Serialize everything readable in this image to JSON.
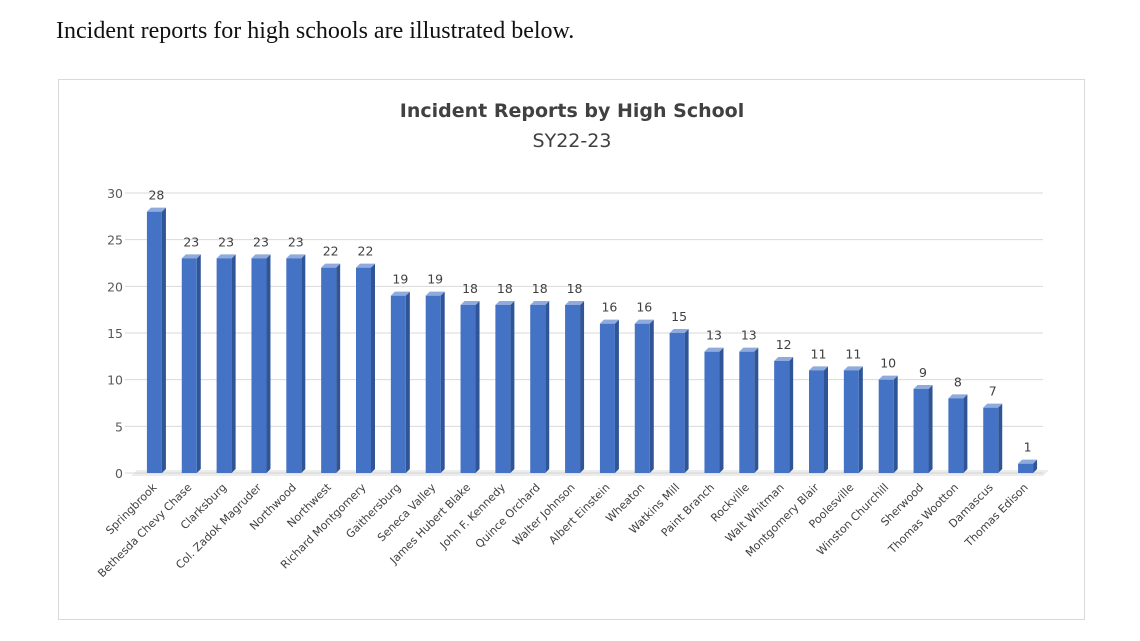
{
  "intro_text": "Incident reports for high schools are illustrated below.",
  "colors": {
    "bar_front": "#4472c4",
    "bar_side": "#2f5597",
    "bar_top": "#8faadc",
    "floor": "#c8c8c8"
  },
  "chart_data": {
    "type": "bar",
    "title": "Incident Reports by High School",
    "subtitle": "SY22-23",
    "xlabel": "",
    "ylabel": "",
    "ylim": [
      0,
      30
    ],
    "yticks": [
      0,
      5,
      10,
      15,
      20,
      25,
      30
    ],
    "grid": true,
    "legend": "none",
    "categories": [
      "Springbrook",
      "Bethesda Chevy Chase",
      "Clarksburg",
      "Col. Zadok Magruder",
      "Northwood",
      "Northwest",
      "Richard Montgomery",
      "Gaithersburg",
      "Seneca Valley",
      "James Hubert Blake",
      "John F. Kennedy",
      "Quince Orchard",
      "Walter Johnson",
      "Albert Einstein",
      "Wheaton",
      "Watkins Mill",
      "Paint Branch",
      "Rockville",
      "Walt Whitman",
      "Montgomery Blair",
      "Poolesville",
      "Winston Churchill",
      "Sherwood",
      "Thomas Wootton",
      "Damascus",
      "Thomas Edison"
    ],
    "values": [
      28,
      23,
      23,
      23,
      23,
      22,
      22,
      19,
      19,
      18,
      18,
      18,
      18,
      16,
      16,
      15,
      13,
      13,
      12,
      11,
      11,
      10,
      9,
      8,
      7,
      1
    ]
  }
}
